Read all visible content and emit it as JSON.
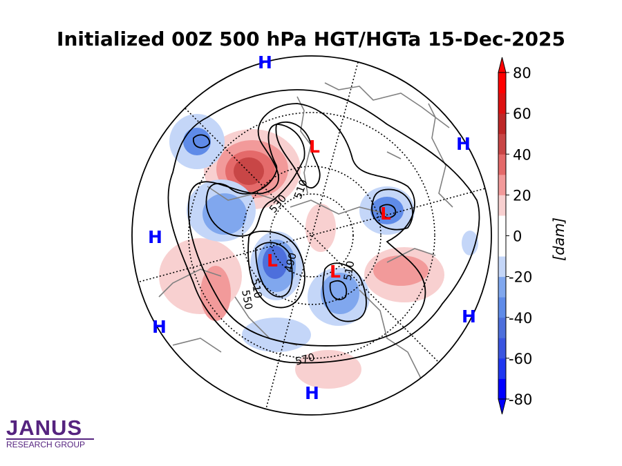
{
  "title": "Initialized 00Z 500 hPa HGT/HGTa 15-Dec-2025",
  "map": {
    "projection": "north-polar-stereographic",
    "high_labels": [
      "H",
      "H",
      "H",
      "H",
      "H",
      "H"
    ],
    "low_labels": [
      "L",
      "L",
      "L",
      "L"
    ],
    "high_color": "#0000ff",
    "low_color": "#ff0000",
    "contour_labels": [
      "530",
      "510",
      "490",
      "510",
      "510",
      "550",
      "570"
    ]
  },
  "colorbar": {
    "label": "[dam]",
    "ticks": [
      "80",
      "60",
      "40",
      "20",
      "0",
      "-20",
      "-40",
      "-60",
      "-80"
    ],
    "range": [
      -80,
      80
    ],
    "interval": 10,
    "colors": [
      "#0000ff",
      "#1f37f0",
      "#3a55e0",
      "#4d6fdc",
      "#5f8be8",
      "#80a7ee",
      "#c4d6f8",
      "#ffffff",
      "#ffffff",
      "#f8d0d0",
      "#f29a9a",
      "#e46a6a",
      "#c84646",
      "#bd2727",
      "#dd1111",
      "#ff0000"
    ]
  },
  "logo": {
    "name": "JANUS",
    "subtitle": "RESEARCH GROUP"
  }
}
